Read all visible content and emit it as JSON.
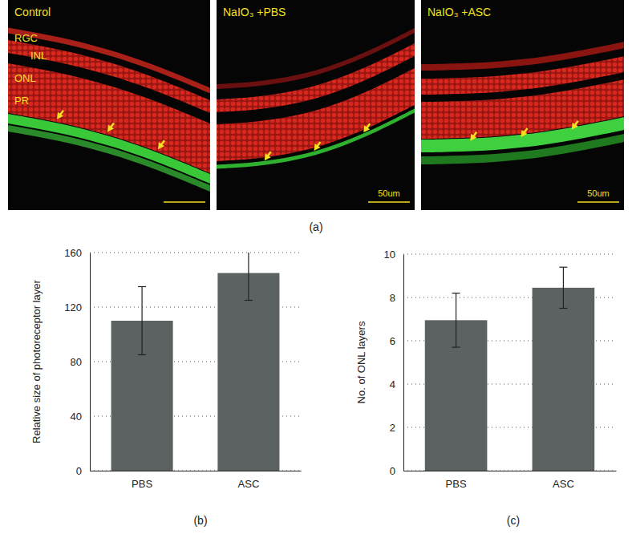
{
  "figure": {
    "panel_a": {
      "label": "(a)",
      "images": [
        {
          "title": "Control",
          "layers": [
            "RGC",
            "INL",
            "ONL",
            "PR"
          ]
        },
        {
          "title": "NaIO₃ +PBS",
          "scale_bar": "50um"
        },
        {
          "title": "NaIO₃ +ASC",
          "scale_bar": "50um"
        }
      ]
    }
  },
  "chart_data": [
    {
      "type": "bar",
      "title": "(b)",
      "categories": [
        "PBS",
        "ASC"
      ],
      "values": [
        110,
        145
      ],
      "errors": [
        25,
        20
      ],
      "color": "#5c6162",
      "ylabel": "Relative size of photoreceptor layer",
      "ylim": [
        0,
        160
      ],
      "yticks": [
        0,
        40,
        80,
        120,
        160
      ],
      "grid": true
    },
    {
      "type": "bar",
      "title": "(c)",
      "categories": [
        "PBS",
        "ASC"
      ],
      "values": [
        6.95,
        8.45
      ],
      "errors": [
        1.25,
        0.95
      ],
      "color": "#5c6162",
      "ylabel": "No. of ONL layers",
      "ylim": [
        0,
        10
      ],
      "yticks": [
        0,
        2,
        4,
        6,
        8,
        10
      ],
      "grid": true
    }
  ]
}
